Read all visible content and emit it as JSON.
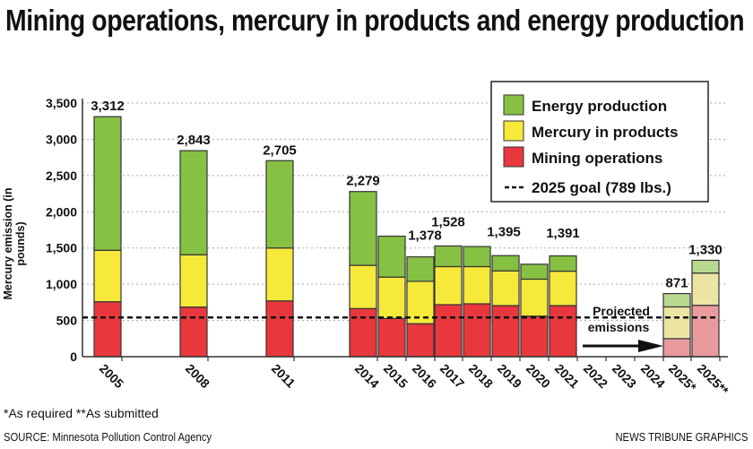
{
  "title": "Mining operations, mercury in products and energy production",
  "notes": "*As required     **As submitted",
  "source": "SOURCE: Minnesota Pollution Control Agency",
  "credit": "NEWS TRIBUNE GRAPHICS",
  "chart_data": {
    "type": "bar",
    "stacked": true,
    "title": "Mining operations, mercury in products and energy production",
    "ylabel": "Mercury emission (in pounds)",
    "ylim": [
      0,
      3500
    ],
    "yticks": [
      "0",
      "500",
      "1,000",
      "1,500",
      "2,000",
      "2,500",
      "3,000",
      "3,500"
    ],
    "grid": true,
    "legend": "top-right",
    "categories": [
      "2005",
      "2008",
      "2011",
      "2014",
      "2015",
      "2016",
      "2017",
      "2018",
      "2019",
      "2020",
      "2021",
      "2022",
      "2023",
      "2024",
      "2025*",
      "2025**"
    ],
    "series": [
      {
        "name": "Mining operations",
        "color": "#e8383d",
        "projected_color": "#e89a9c",
        "values": [
          758,
          685,
          770,
          664,
          528,
          455,
          718,
          730,
          705,
          560,
          705,
          null,
          null,
          null,
          249,
          709
        ]
      },
      {
        "name": "Mercury in products",
        "color": "#f7e93a",
        "projected_color": "#ece4a3",
        "values": [
          710,
          721,
          730,
          597,
          570,
          585,
          525,
          513,
          479,
          510,
          475,
          null,
          null,
          null,
          438,
          445
        ]
      },
      {
        "name": "Energy production",
        "color": "#86c143",
        "projected_color": "#b9d98f",
        "values": [
          1844,
          1437,
          1205,
          1018,
          565,
          338,
          285,
          277,
          211,
          206,
          211,
          null,
          null,
          null,
          184,
          176
        ]
      }
    ],
    "totals": [
      3312,
      2843,
      2705,
      2279,
      null,
      1378,
      1528,
      null,
      1395,
      null,
      1391,
      null,
      null,
      null,
      871,
      1330
    ],
    "total_labels": [
      "3,312",
      "2,843",
      "2,705",
      "2,279",
      "",
      "1,378",
      "1,528",
      "",
      "1,395",
      "",
      "1,391",
      "",
      "",
      "",
      "871",
      "1,330"
    ],
    "projected_categories": [
      "2025*",
      "2025**"
    ],
    "goal": {
      "label": "2025 goal (789 lbs.)",
      "value": 789
    },
    "annotation": [
      "Projected",
      "emissions"
    ]
  }
}
